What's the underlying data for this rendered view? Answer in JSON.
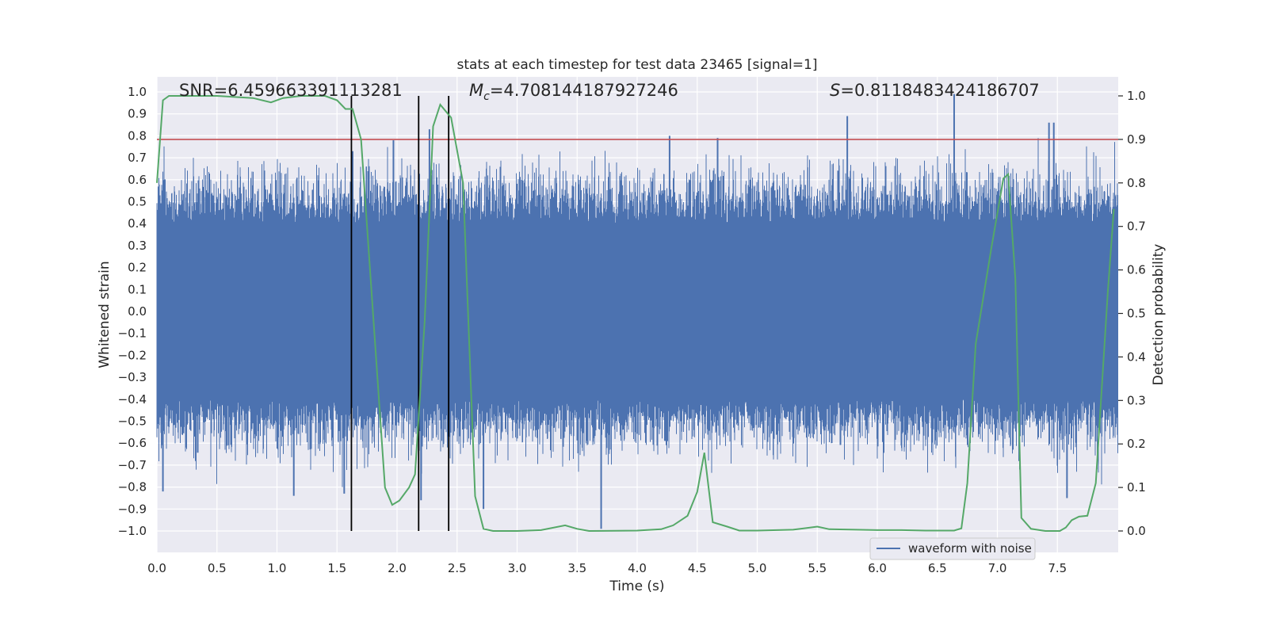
{
  "chart_data": {
    "type": "line",
    "title": "stats at each timestep for test data 23465 [signal=1]",
    "xlabel": "Time (s)",
    "ylabel": "Whitened strain",
    "y2label": "Detection probability",
    "xlim": [
      0.0,
      8.0
    ],
    "ylim": [
      -1.1,
      1.1
    ],
    "y2lim": [
      -0.05,
      1.05
    ],
    "grid": true,
    "x_ticks": [
      0.0,
      0.5,
      1.0,
      1.5,
      2.0,
      2.5,
      3.0,
      3.5,
      4.0,
      4.5,
      5.0,
      5.5,
      6.0,
      6.5,
      7.0,
      7.5
    ],
    "x_tick_labels": [
      "0.0",
      "0.5",
      "1.0",
      "1.5",
      "2.0",
      "2.5",
      "3.0",
      "3.5",
      "4.0",
      "4.5",
      "5.0",
      "5.5",
      "6.0",
      "6.5",
      "7.0",
      "7.5"
    ],
    "y_ticks": [
      -1.0,
      -0.9,
      -0.8,
      -0.7,
      -0.6,
      -0.5,
      -0.4,
      -0.3,
      -0.2,
      -0.1,
      0.0,
      0.1,
      0.2,
      0.3,
      0.4,
      0.5,
      0.6,
      0.7,
      0.8,
      0.9,
      1.0
    ],
    "y_tick_labels": [
      "−1.0",
      "−0.9",
      "−0.8",
      "−0.7",
      "−0.6",
      "−0.5",
      "−0.4",
      "−0.3",
      "−0.2",
      "−0.1",
      "0.0",
      "0.1",
      "0.2",
      "0.3",
      "0.4",
      "0.5",
      "0.6",
      "0.7",
      "0.8",
      "0.9",
      "1.0"
    ],
    "y2_ticks": [
      0.0,
      0.1,
      0.2,
      0.3,
      0.4,
      0.5,
      0.6,
      0.7,
      0.8,
      0.9,
      1.0
    ],
    "y2_tick_labels": [
      "0.0",
      "0.1",
      "0.2",
      "0.3",
      "0.4",
      "0.5",
      "0.6",
      "0.7",
      "0.8",
      "0.9",
      "1.0"
    ],
    "annotations": {
      "snr": "SNR=6.459663391113281",
      "mc_symbol": "M",
      "mc_subscript": "c",
      "mc_value": "=4.708144187927246",
      "s_symbol": "S",
      "s_value": "=0.8118483424186707"
    },
    "threshold": {
      "value": 0.9,
      "axis": "y2",
      "color": "#c44e52"
    },
    "vertical_lines": [
      1.62,
      2.18,
      2.43
    ],
    "legend": {
      "label": "waveform with noise",
      "placement": "lower-right"
    },
    "series": [
      {
        "name": "waveform with noise",
        "axis": "y",
        "color": "#4c72b0",
        "style": "dense-noise",
        "typical_amplitude": 0.4,
        "peaks": [
          {
            "x": 1.63,
            "y": 0.73
          },
          {
            "x": 1.97,
            "y": 0.78
          },
          {
            "x": 2.27,
            "y": 0.83
          },
          {
            "x": 4.27,
            "y": 0.8
          },
          {
            "x": 4.67,
            "y": 0.79
          },
          {
            "x": 5.75,
            "y": 0.89
          },
          {
            "x": 6.64,
            "y": 0.99
          },
          {
            "x": 7.43,
            "y": 0.86
          },
          {
            "x": 7.47,
            "y": 0.86
          },
          {
            "x": 2.2,
            "y": -0.86
          },
          {
            "x": 2.72,
            "y": -0.9
          },
          {
            "x": 3.7,
            "y": -0.99
          },
          {
            "x": 7.58,
            "y": -0.85
          },
          {
            "x": 1.14,
            "y": -0.84
          },
          {
            "x": 1.56,
            "y": -0.83
          },
          {
            "x": 0.05,
            "y": -0.82
          }
        ]
      },
      {
        "name": "detection probability",
        "axis": "y2",
        "color": "#55a868",
        "x": [
          0.0,
          0.05,
          0.1,
          0.3,
          0.5,
          0.8,
          0.95,
          1.05,
          1.2,
          1.4,
          1.5,
          1.57,
          1.63,
          1.7,
          1.8,
          1.9,
          1.96,
          2.02,
          2.1,
          2.15,
          2.23,
          2.3,
          2.36,
          2.45,
          2.55,
          2.65,
          2.72,
          2.8,
          3.0,
          3.2,
          3.4,
          3.5,
          3.6,
          4.0,
          4.2,
          4.3,
          4.42,
          4.5,
          4.56,
          4.63,
          4.75,
          4.85,
          5.0,
          5.3,
          5.5,
          5.6,
          6.0,
          6.2,
          6.4,
          6.64,
          6.7,
          6.75,
          6.82,
          6.95,
          7.05,
          7.09,
          7.15,
          7.2,
          7.28,
          7.4,
          7.52,
          7.57,
          7.62,
          7.68,
          7.75,
          7.82,
          7.92,
          7.97
        ],
        "values": [
          0.8,
          0.99,
          1.0,
          1.0,
          1.0,
          0.995,
          0.985,
          0.995,
          1.0,
          1.0,
          0.99,
          0.97,
          0.97,
          0.9,
          0.5,
          0.1,
          0.06,
          0.07,
          0.1,
          0.13,
          0.48,
          0.93,
          0.98,
          0.95,
          0.8,
          0.08,
          0.005,
          0.0,
          0.0,
          0.002,
          0.013,
          0.005,
          0.0,
          0.001,
          0.004,
          0.013,
          0.035,
          0.09,
          0.18,
          0.02,
          0.01,
          0.001,
          0.001,
          0.003,
          0.01,
          0.004,
          0.002,
          0.002,
          0.001,
          0.001,
          0.006,
          0.11,
          0.43,
          0.65,
          0.81,
          0.82,
          0.58,
          0.03,
          0.005,
          0.0,
          0.0,
          0.008,
          0.025,
          0.033,
          0.035,
          0.11,
          0.55,
          0.74
        ]
      }
    ]
  }
}
